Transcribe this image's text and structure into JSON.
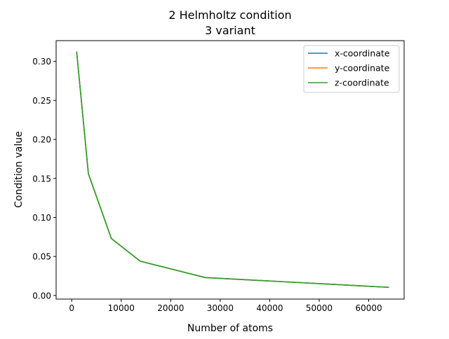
{
  "chart_data": {
    "type": "line",
    "title": "2 Helmholtz condition",
    "subtitle": "3 variant",
    "xlabel": "Number of atoms",
    "ylabel": "Condition value",
    "xlim": [
      -3150,
      67150
    ],
    "ylim": [
      -0.0046,
      0.3266
    ],
    "x_ticks": [
      0,
      10000,
      20000,
      30000,
      40000,
      50000,
      60000
    ],
    "x_tick_labels": [
      "0",
      "10000",
      "20000",
      "30000",
      "40000",
      "50000",
      "60000"
    ],
    "y_ticks": [
      0.0,
      0.05,
      0.1,
      0.15,
      0.2,
      0.25,
      0.3
    ],
    "y_tick_labels": [
      "0.00",
      "0.05",
      "0.10",
      "0.15",
      "0.20",
      "0.25",
      "0.30"
    ],
    "grid": false,
    "legend_position": "top-right",
    "x": [
      1000,
      3375,
      8000,
      13824,
      27000,
      64000
    ],
    "series": [
      {
        "name": "x-coordinate",
        "color": "#1f77b4",
        "values": [
          0.312,
          0.156,
          0.073,
          0.044,
          0.023,
          0.0105
        ]
      },
      {
        "name": "y-coordinate",
        "color": "#ff7f0e",
        "values": [
          0.312,
          0.156,
          0.073,
          0.044,
          0.023,
          0.0105
        ]
      },
      {
        "name": "z-coordinate",
        "color": "#2ca02c",
        "values": [
          0.312,
          0.156,
          0.073,
          0.044,
          0.023,
          0.0105
        ]
      }
    ]
  }
}
